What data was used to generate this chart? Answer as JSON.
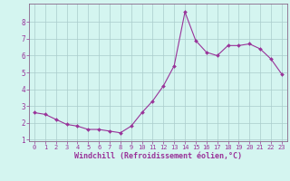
{
  "x": [
    0,
    1,
    2,
    3,
    4,
    5,
    6,
    7,
    8,
    9,
    10,
    11,
    12,
    13,
    14,
    15,
    16,
    17,
    18,
    19,
    20,
    21,
    22,
    23
  ],
  "y": [
    2.6,
    2.5,
    2.2,
    1.9,
    1.8,
    1.6,
    1.6,
    1.5,
    1.4,
    1.8,
    2.6,
    3.3,
    4.2,
    5.4,
    8.6,
    6.9,
    6.2,
    6.0,
    6.6,
    6.6,
    6.7,
    6.4,
    5.8,
    4.9
  ],
  "line_color": "#993399",
  "marker": "D",
  "marker_size": 2.0,
  "bg_color": "#d4f5f0",
  "grid_color": "#aacccc",
  "xlabel": "Windchill (Refroidissement éolien,°C)",
  "xlim": [
    -0.5,
    23.5
  ],
  "ylim": [
    0.9,
    9.1
  ],
  "yticks": [
    1,
    2,
    3,
    4,
    5,
    6,
    7,
    8
  ],
  "xticks": [
    0,
    1,
    2,
    3,
    4,
    5,
    6,
    7,
    8,
    9,
    10,
    11,
    12,
    13,
    14,
    15,
    16,
    17,
    18,
    19,
    20,
    21,
    22,
    23
  ],
  "tick_color": "#993399",
  "tick_fontsize": 5.0,
  "xlabel_fontsize": 6.0,
  "axis_color": "#993399",
  "spine_color": "#886688"
}
